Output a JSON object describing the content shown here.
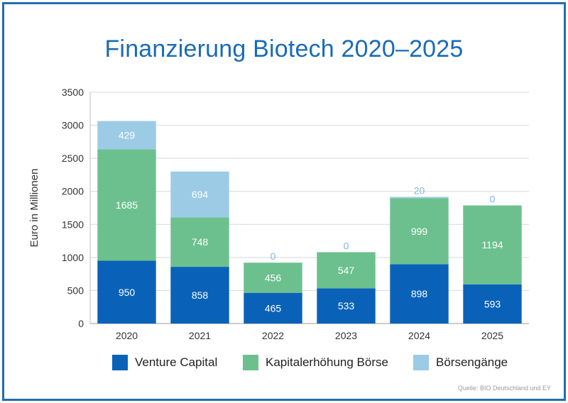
{
  "chart_data": {
    "type": "bar",
    "stacked": true,
    "title": "Finanzierung Biotech 2020–2025",
    "ylabel": "Euro in Millionen",
    "xlabel": "",
    "ylim": [
      0,
      3500
    ],
    "yticks": [
      0,
      500,
      1000,
      1500,
      2000,
      2500,
      3000,
      3500
    ],
    "grid": true,
    "legend_position": "bottom",
    "categories": [
      "2020",
      "2021",
      "2022",
      "2023",
      "2024",
      "2025"
    ],
    "series": [
      {
        "name": "Venture Capital",
        "color": "#0a62b8",
        "label_color": "#ffffff",
        "values": [
          950,
          858,
          465,
          533,
          898,
          593
        ]
      },
      {
        "name": "Kapitalerhöhung Börse",
        "color": "#6cc08e",
        "label_color": "#ffffff",
        "values": [
          1685,
          748,
          456,
          547,
          999,
          1194
        ]
      },
      {
        "name": "Börsengänge",
        "color": "#9ccbe6",
        "label_color": "#ffffff",
        "zero_label_color": "#7fb8dd",
        "values": [
          429,
          694,
          0,
          0,
          20,
          0
        ]
      }
    ]
  },
  "source": "Quelle: BIO Deutschland und EY"
}
